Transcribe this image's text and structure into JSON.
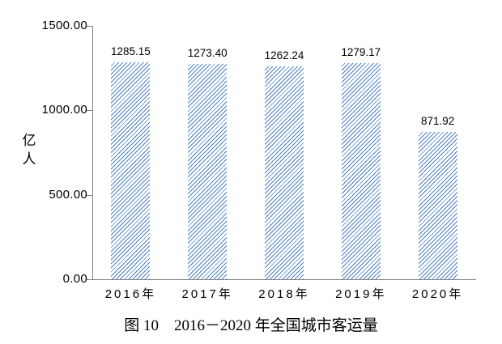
{
  "chart_data": {
    "type": "bar",
    "title": "图 10　2016－2020 年全国城市客运量",
    "ylabel": "亿人",
    "xlabel": "",
    "categories": [
      "2016年",
      "2017年",
      "2018年",
      "2019年",
      "2020年"
    ],
    "values": [
      1285.15,
      1273.4,
      1262.24,
      1279.17,
      871.92
    ],
    "value_labels": [
      "1285.15",
      "1273.40",
      "1262.24",
      "1279.17",
      "871.92"
    ],
    "ylim": [
      0,
      1500
    ],
    "yticks": [
      {
        "value": 0,
        "label": "0.00"
      },
      {
        "value": 500,
        "label": "500.00"
      },
      {
        "value": 1000,
        "label": "1000.00"
      },
      {
        "value": 1500,
        "label": "1500.00"
      }
    ],
    "grid": false,
    "legend": "none",
    "bar_style": "diagonal-hatch",
    "colors": {
      "bar_hatch": "#4f81bd",
      "axis": "#808080",
      "text": "#000000",
      "background": "#ffffff"
    }
  }
}
